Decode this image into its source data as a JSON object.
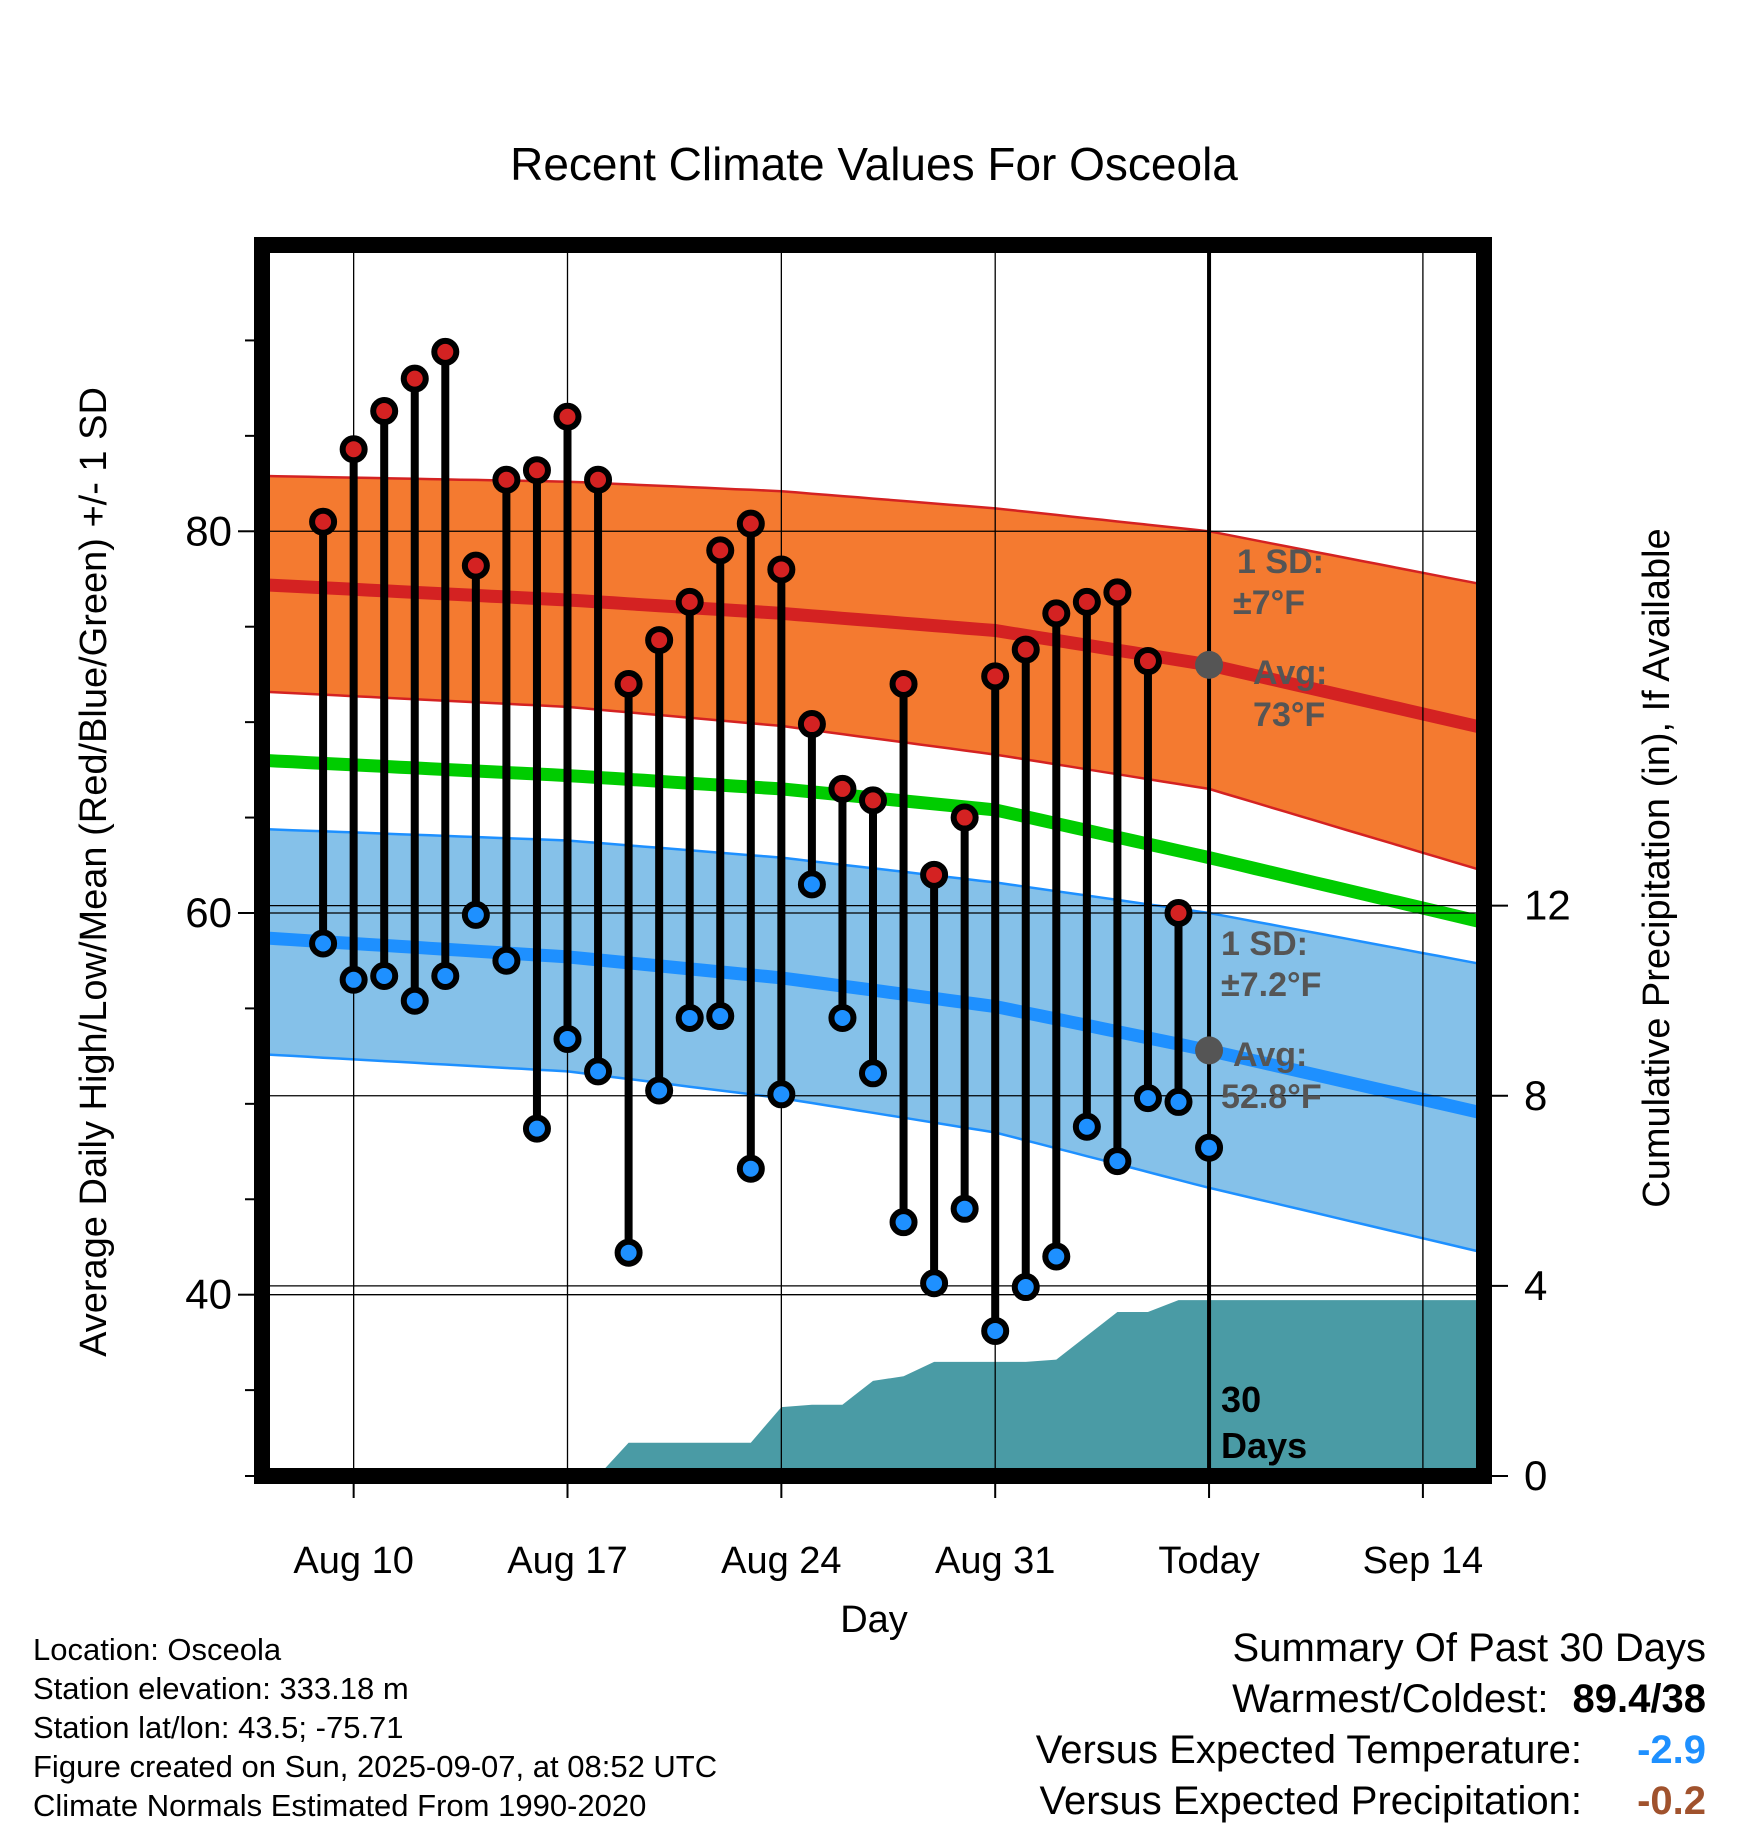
{
  "chart_data": {
    "type": "line",
    "title": "Recent Climate Values For Osceola",
    "xlabel": "Day",
    "ylabel": "Average Daily High/Low/Mean (Red/Blue/Green) +/- 1 SD",
    "y2label": "Cumulative Precipitation (in), If Available",
    "xlim": [
      "2025-08-07",
      "2025-09-16"
    ],
    "ylim": [
      30.5,
      95
    ],
    "y2lim": [
      0,
      25.9
    ],
    "x_tick_labels": [
      "Aug 10",
      "Aug 17",
      "Aug 24",
      "Aug 31",
      "Today",
      "Sep 14"
    ],
    "x_tick_dates": [
      "2025-08-10",
      "2025-08-17",
      "2025-08-24",
      "2025-08-31",
      "2025-09-07",
      "2025-09-14"
    ],
    "y_tick_labels": [
      "40",
      "60",
      "80"
    ],
    "y_tick_values": [
      40,
      60,
      80
    ],
    "y2_tick_labels": [
      "0",
      "4",
      "8",
      "12"
    ],
    "y2_tick_values": [
      0,
      4,
      8,
      12
    ],
    "grid": true,
    "today": "2025-09-07",
    "today_label": "30 Days",
    "normals": {
      "dates": [
        "2025-08-07",
        "2025-08-17",
        "2025-08-24",
        "2025-08-31",
        "2025-09-07",
        "2025-09-16"
      ],
      "high_avg": [
        77.2,
        76.4,
        75.7,
        74.8,
        73.0,
        69.7
      ],
      "high_sd_upper": [
        82.9,
        82.6,
        82.1,
        81.2,
        80.0,
        77.2
      ],
      "high_sd_lower": [
        71.6,
        70.8,
        69.8,
        68.3,
        66.5,
        62.2
      ],
      "mean": [
        68.0,
        67.2,
        66.5,
        65.4,
        62.9,
        59.5
      ],
      "low_avg": [
        58.7,
        57.7,
        56.6,
        55.1,
        52.8,
        49.5
      ],
      "low_sd_upper": [
        64.4,
        63.8,
        62.9,
        61.6,
        60.0,
        57.3
      ],
      "low_sd_lower": [
        52.6,
        51.7,
        50.3,
        48.5,
        45.6,
        42.2
      ]
    },
    "series": [
      {
        "name": "High",
        "color": "#d42222",
        "values": [
          80.5,
          84.3,
          86.3,
          88.0,
          89.4,
          78.2,
          82.7,
          83.2,
          86.0,
          82.7,
          72.0,
          74.3,
          76.3,
          79.0,
          80.4,
          78.0,
          69.9,
          66.5,
          65.9,
          72.0,
          62.0,
          65.0,
          72.4,
          73.8,
          75.7,
          76.3,
          76.8,
          73.2,
          60.0
        ]
      },
      {
        "name": "Low",
        "color": "#1e90ff",
        "values": [
          58.4,
          56.5,
          56.7,
          55.4,
          56.7,
          59.9,
          57.5,
          48.7,
          53.4,
          51.7,
          42.2,
          50.7,
          54.5,
          54.6,
          46.6,
          50.5,
          61.5,
          54.5,
          51.6,
          43.8,
          40.6,
          44.5,
          38.1,
          40.4,
          42.0,
          48.8,
          47.0,
          50.3,
          50.1,
          47.7
        ]
      }
    ],
    "obs_dates_start": "2025-08-09",
    "precip": {
      "dates": [
        "2025-08-18",
        "2025-08-19",
        "2025-08-22",
        "2025-08-23",
        "2025-08-24",
        "2025-08-25",
        "2025-08-26",
        "2025-08-27",
        "2025-08-28",
        "2025-08-29",
        "2025-09-01",
        "2025-09-02",
        "2025-09-04",
        "2025-09-05",
        "2025-09-06",
        "2025-09-16"
      ],
      "values": [
        0.0,
        0.7,
        0.7,
        0.7,
        1.45,
        1.5,
        1.5,
        2.0,
        2.1,
        2.4,
        2.4,
        2.45,
        3.45,
        3.45,
        3.7,
        3.7
      ]
    },
    "annotations": {
      "high_sd": "1 SD:",
      "high_sd_value": "±7°F",
      "high_avg": "Avg:",
      "high_avg_value": "73°F",
      "low_sd": "1 SD:",
      "low_sd_value": "±7.2°F",
      "low_avg": "Avg:",
      "low_avg_value": "52.8°F"
    },
    "colors": {
      "high_band": "#f47a30",
      "high_line": "#d42222",
      "mean_line": "#00cc00",
      "low_band": "#85c1e9",
      "low_line": "#1e90ff",
      "precip": "#4a9ba5",
      "marker_gray": "#555555"
    }
  },
  "info": {
    "location": "Location: Osceola",
    "elevation": "Station elevation: 333.18 m",
    "latlon": "Station lat/lon: 43.5; -75.71",
    "created": "Figure created on Sun, 2025-09-07, at 08:52 UTC",
    "normals": "Climate Normals Estimated From 1990-2020"
  },
  "summary": {
    "heading": "Summary Of Past 30 Days",
    "warmest_label": "Warmest/Coldest:",
    "warmest_value": "89.4/38",
    "temp_label": "Versus Expected Temperature:",
    "temp_value": "-2.9",
    "temp_color": "#1e90ff",
    "precip_label": "Versus Expected Precipitation:",
    "precip_value": "-0.2",
    "precip_color": "#a0522d"
  }
}
